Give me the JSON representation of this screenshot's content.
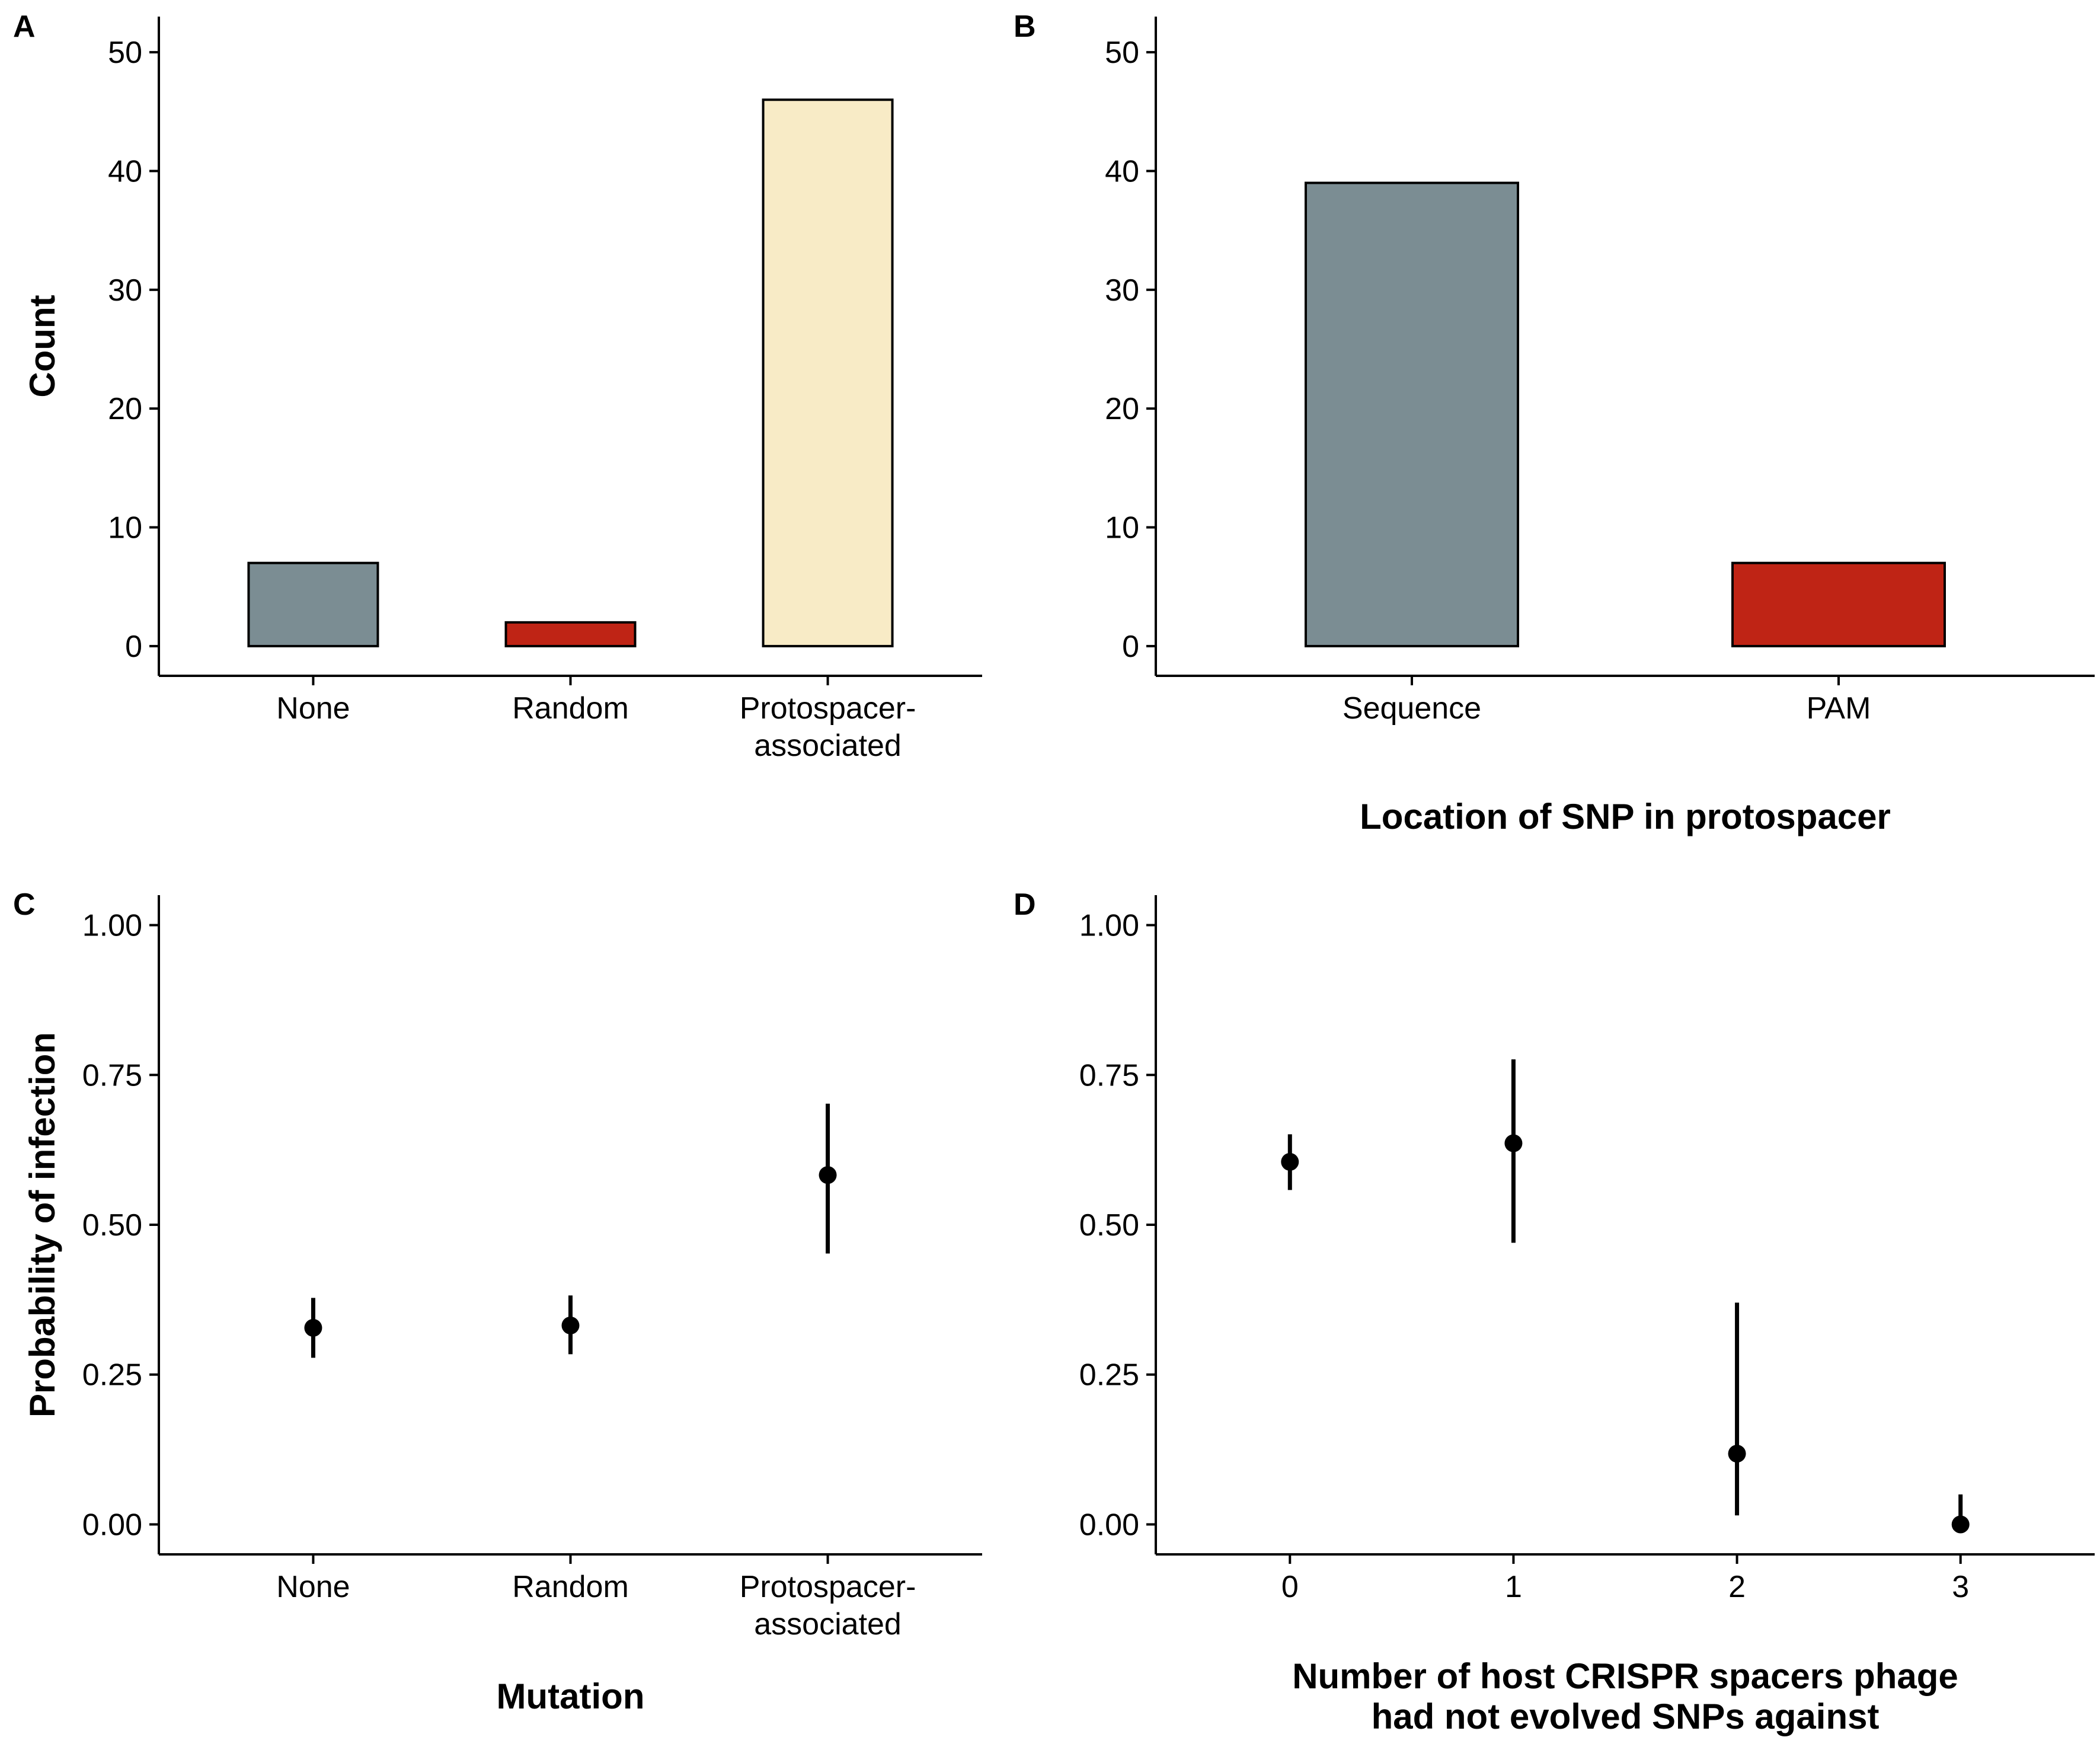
{
  "chart_data": [
    {
      "panel": "A",
      "type": "bar",
      "categories": [
        [
          "None"
        ],
        [
          "Random"
        ],
        [
          "Protospacer-",
          "associated"
        ]
      ],
      "values": [
        7,
        2,
        46
      ],
      "colors": [
        "#7b8d93",
        "#bf2415",
        "#f8ebc6"
      ],
      "xlabel": "",
      "ylabel": "Count",
      "ylim": [
        -2.5,
        53
      ],
      "yticks": [
        0,
        10,
        20,
        30,
        40,
        50
      ],
      "ytick_labels": [
        "0",
        "10",
        "20",
        "30",
        "40",
        "50"
      ],
      "grid": false
    },
    {
      "panel": "B",
      "type": "bar",
      "categories": [
        [
          "Sequence"
        ],
        [
          "PAM"
        ]
      ],
      "values": [
        39,
        7
      ],
      "colors": [
        "#7b8d93",
        "#bf2415"
      ],
      "xlabel": [
        "Location of SNP in protospacer"
      ],
      "ylabel": "",
      "ylim": [
        -2.5,
        53
      ],
      "yticks": [
        0,
        10,
        20,
        30,
        40,
        50
      ],
      "ytick_labels": [
        "0",
        "10",
        "20",
        "30",
        "40",
        "50"
      ],
      "grid": false
    },
    {
      "panel": "C",
      "type": "scatter",
      "categories": [
        [
          "None"
        ],
        [
          "Random"
        ],
        [
          "Protospacer-",
          "associated"
        ]
      ],
      "points": [
        {
          "y": 0.328,
          "low": 0.278,
          "high": 0.378
        },
        {
          "y": 0.332,
          "low": 0.284,
          "high": 0.382
        },
        {
          "y": 0.583,
          "low": 0.452,
          "high": 0.702
        }
      ],
      "xlabel": [
        "Mutation"
      ],
      "ylabel": "Probability of infection",
      "ylim": [
        -0.05,
        1.05
      ],
      "yticks": [
        0,
        0.25,
        0.5,
        0.75,
        1
      ],
      "ytick_labels": [
        "0.00",
        "0.25",
        "0.50",
        "0.75",
        "1.00"
      ],
      "grid": false
    },
    {
      "panel": "D",
      "type": "scatter",
      "x": [
        0,
        1,
        2,
        3
      ],
      "xtick_labels": [
        "0",
        "1",
        "2",
        "3"
      ],
      "points": [
        {
          "x": 0,
          "y": 0.605,
          "low": 0.558,
          "high": 0.651
        },
        {
          "x": 1,
          "y": 0.636,
          "low": 0.47,
          "high": 0.776
        },
        {
          "x": 2,
          "y": 0.118,
          "low": 0.015,
          "high": 0.37
        },
        {
          "x": 3,
          "y": 0.0,
          "low": 0.0,
          "high": 0.05
        }
      ],
      "xlabel": [
        "Number of host CRISPR spacers phage",
        "had not evolved SNPs against"
      ],
      "ylabel": "",
      "xlim": [
        -0.6,
        3.6
      ],
      "ylim": [
        -0.05,
        1.05
      ],
      "yticks": [
        0,
        0.25,
        0.5,
        0.75,
        1
      ],
      "ytick_labels": [
        "0.00",
        "0.25",
        "0.50",
        "0.75",
        "1.00"
      ],
      "grid": false
    }
  ]
}
